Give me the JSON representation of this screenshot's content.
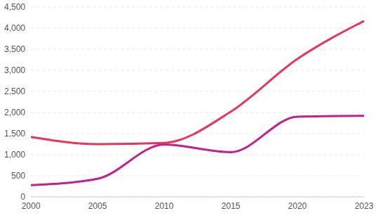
{
  "chart_data": {
    "type": "line",
    "categories": [
      "2000",
      "2005",
      "2010",
      "2015",
      "2020",
      "2023"
    ],
    "series": [
      {
        "color": "#e8365a",
        "values": [
          1420,
          1250,
          1280,
          2020,
          3270,
          4170
        ]
      },
      {
        "color": "#c2208e",
        "values": [
          280,
          430,
          1240,
          1060,
          1900,
          1920
        ]
      }
    ],
    "ylim": [
      0,
      4500
    ],
    "yticks": [
      0,
      500,
      {
        "value": 1000,
        "label": "1,000"
      },
      {
        "value": 1500,
        "label": "1,500"
      },
      {
        "value": 2000,
        "label": "2,000"
      },
      {
        "value": 2500,
        "label": "2,500"
      },
      {
        "value": 3000,
        "label": "3,000"
      },
      {
        "value": 3500,
        "label": "3,500"
      },
      {
        "value": 4000,
        "label": "4,000"
      },
      {
        "value": 4500,
        "label": "4,500"
      }
    ],
    "grid": true
  }
}
